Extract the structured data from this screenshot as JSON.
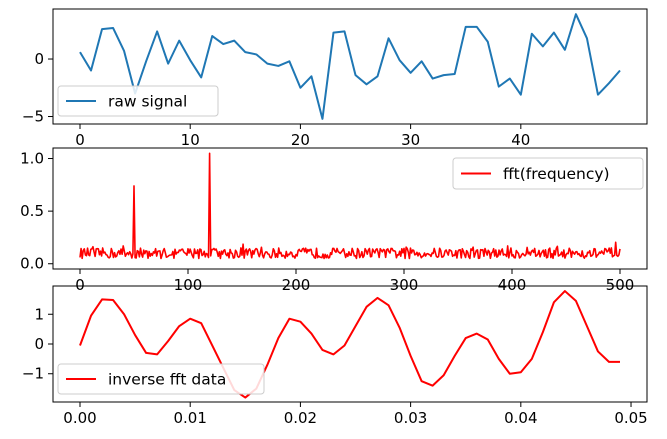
{
  "chart_data": [
    {
      "type": "line",
      "series": [
        {
          "name": "raw signal",
          "color": "#1f77b4",
          "x": [
            0,
            1,
            2,
            3,
            4,
            5,
            6,
            7,
            8,
            9,
            10,
            11,
            12,
            13,
            14,
            15,
            16,
            17,
            18,
            19,
            20,
            21,
            22,
            23,
            24,
            25,
            26,
            27,
            28,
            29,
            30,
            31,
            32,
            33,
            34,
            35,
            36,
            37,
            38,
            39,
            40,
            41,
            42,
            43,
            44,
            45,
            46,
            47,
            48,
            49
          ],
          "y": [
            0.6,
            -1.0,
            2.6,
            2.7,
            0.7,
            -3.0,
            -0.2,
            2.4,
            -0.4,
            1.6,
            -0.1,
            -1.6,
            2.0,
            1.3,
            1.6,
            0.6,
            0.4,
            -0.4,
            -0.6,
            -0.2,
            -2.5,
            -1.5,
            -5.2,
            2.3,
            2.4,
            -1.4,
            -2.2,
            -1.5,
            1.8,
            -0.1,
            -1.2,
            -0.2,
            -1.7,
            -1.4,
            -1.3,
            2.8,
            2.8,
            1.5,
            -2.4,
            -1.7,
            -3.1,
            2.2,
            1.1,
            2.3,
            0.8,
            3.9,
            1.8,
            -3.1,
            -2.1,
            -1.0
          ]
        }
      ],
      "xlim": [
        -2.45,
        51.45
      ],
      "ylim": [
        -5.65,
        4.35
      ],
      "xticks": [
        0,
        10,
        20,
        30,
        40
      ],
      "xtick_labels": [
        "0",
        "10",
        "20",
        "30",
        "40"
      ],
      "yticks": [
        0,
        -5
      ],
      "ytick_labels": [
        "0",
        "−5"
      ],
      "legend": "lower-left"
    },
    {
      "type": "line",
      "series": [
        {
          "name": "fft(frequency)",
          "color": "#ff0000",
          "x_start": 0,
          "x_step": 1,
          "count": 501,
          "baseline": 0.1,
          "noise_amplitude": 0.05,
          "peaks": [
            {
              "x": 50,
              "y": 0.74
            },
            {
              "x": 120,
              "y": 1.05
            }
          ]
        }
      ],
      "xlim": [
        -25,
        525
      ],
      "ylim": [
        -0.05,
        1.1
      ],
      "xticks": [
        0,
        100,
        200,
        300,
        400,
        500
      ],
      "xtick_labels": [
        "0",
        "100",
        "200",
        "300",
        "400",
        "500"
      ],
      "yticks": [
        0.0,
        0.5,
        1.0
      ],
      "ytick_labels": [
        "0.0",
        "0.5",
        "1.0"
      ],
      "legend": "upper-right"
    },
    {
      "type": "line",
      "series": [
        {
          "name": "inverse fft data",
          "color": "#ff0000",
          "x": [
            0.0,
            0.001,
            0.002,
            0.003,
            0.004,
            0.005,
            0.006,
            0.007,
            0.008,
            0.009,
            0.01,
            0.011,
            0.012,
            0.013,
            0.014,
            0.015,
            0.016,
            0.017,
            0.018,
            0.019,
            0.02,
            0.021,
            0.022,
            0.023,
            0.024,
            0.025,
            0.026,
            0.027,
            0.028,
            0.029,
            0.03,
            0.031,
            0.032,
            0.033,
            0.034,
            0.035,
            0.036,
            0.037,
            0.038,
            0.039,
            0.04,
            0.041,
            0.042,
            0.043,
            0.044,
            0.045,
            0.046,
            0.047,
            0.048,
            0.049
          ],
          "y": [
            -0.05,
            0.95,
            1.5,
            1.48,
            1.0,
            0.3,
            -0.3,
            -0.35,
            0.1,
            0.6,
            0.85,
            0.7,
            -0.05,
            -0.8,
            -1.55,
            -1.8,
            -1.5,
            -0.7,
            0.2,
            0.85,
            0.75,
            0.35,
            -0.2,
            -0.35,
            -0.05,
            0.6,
            1.25,
            1.55,
            1.3,
            0.55,
            -0.4,
            -1.25,
            -1.4,
            -1.05,
            -0.4,
            0.2,
            0.35,
            0.15,
            -0.5,
            -1.0,
            -0.95,
            -0.5,
            0.4,
            1.4,
            1.78,
            1.45,
            0.6,
            -0.25,
            -0.6,
            -0.6
          ]
        }
      ],
      "xlim": [
        -0.00245,
        0.05145
      ],
      "ylim": [
        -1.95,
        1.95
      ],
      "xticks": [
        0.0,
        0.01,
        0.02,
        0.03,
        0.04,
        0.05
      ],
      "xtick_labels": [
        "0.00",
        "0.01",
        "0.02",
        "0.03",
        "0.04",
        "0.05"
      ],
      "yticks": [
        1,
        0,
        -1
      ],
      "ytick_labels": [
        "1",
        "0",
        "−1"
      ],
      "legend": "lower-left"
    }
  ]
}
